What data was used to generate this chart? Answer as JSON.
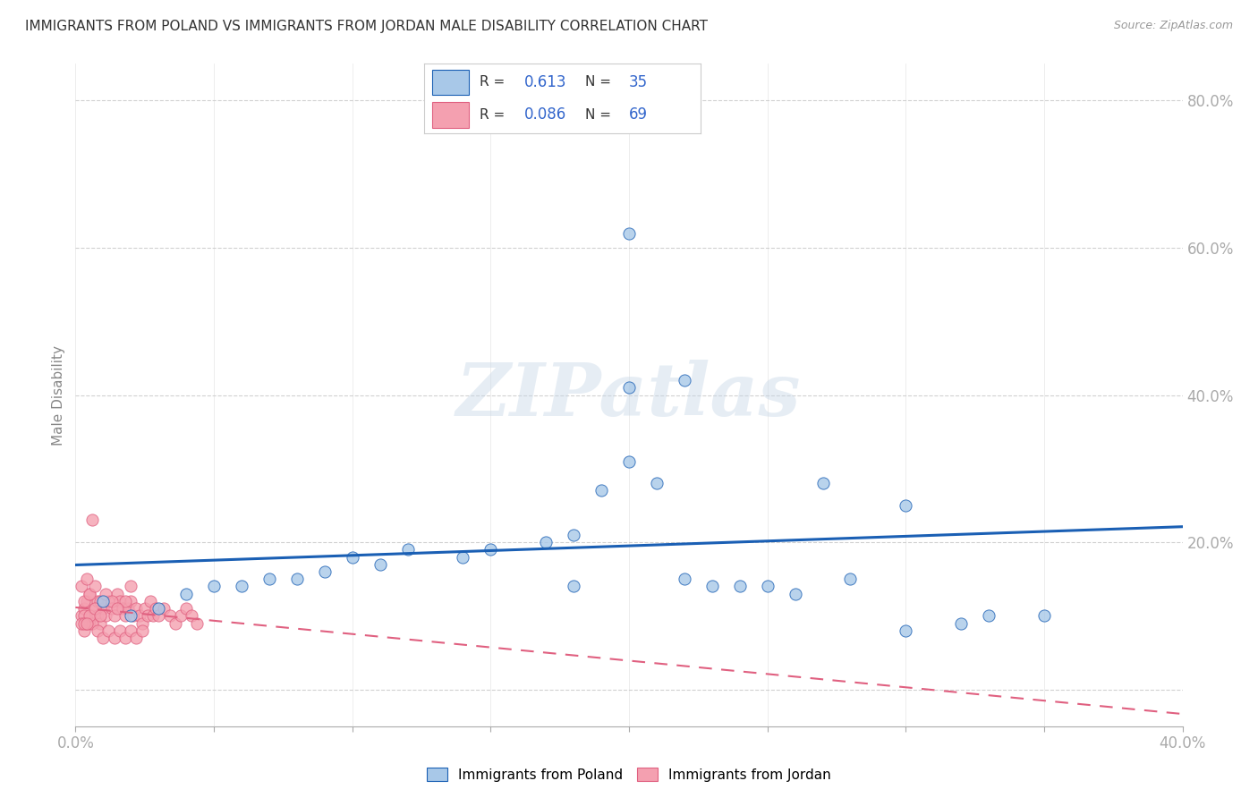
{
  "title": "IMMIGRANTS FROM POLAND VS IMMIGRANTS FROM JORDAN MALE DISABILITY CORRELATION CHART",
  "source": "Source: ZipAtlas.com",
  "ylabel": "Male Disability",
  "x_min": 0.0,
  "x_max": 0.4,
  "y_min": -0.05,
  "y_max": 0.85,
  "x_ticks": [
    0.0,
    0.05,
    0.1,
    0.15,
    0.2,
    0.25,
    0.3,
    0.35,
    0.4
  ],
  "x_tick_labels_show": [
    true,
    false,
    false,
    false,
    false,
    false,
    false,
    false,
    true
  ],
  "y_ticks": [
    0.0,
    0.2,
    0.4,
    0.6,
    0.8
  ],
  "poland_color": "#a8c8e8",
  "jordan_color": "#f4a0b0",
  "poland_line_color": "#1a5fb4",
  "jordan_line_color": "#e06080",
  "poland_R": 0.613,
  "poland_N": 35,
  "jordan_R": 0.086,
  "jordan_N": 69,
  "watermark": "ZIPatlas",
  "poland_scatter_x": [
    0.01,
    0.02,
    0.03,
    0.04,
    0.05,
    0.06,
    0.07,
    0.08,
    0.09,
    0.1,
    0.11,
    0.12,
    0.14,
    0.15,
    0.17,
    0.18,
    0.19,
    0.2,
    0.21,
    0.22,
    0.23,
    0.24,
    0.25,
    0.26,
    0.27,
    0.28,
    0.3,
    0.18,
    0.2,
    0.2,
    0.22,
    0.33,
    0.35,
    0.32,
    0.3
  ],
  "poland_scatter_y": [
    0.12,
    0.1,
    0.11,
    0.13,
    0.14,
    0.14,
    0.15,
    0.15,
    0.16,
    0.18,
    0.17,
    0.19,
    0.18,
    0.19,
    0.2,
    0.21,
    0.27,
    0.41,
    0.28,
    0.15,
    0.14,
    0.14,
    0.14,
    0.13,
    0.28,
    0.15,
    0.25,
    0.14,
    0.62,
    0.31,
    0.42,
    0.1,
    0.1,
    0.09,
    0.08
  ],
  "jordan_scatter_x": [
    0.002,
    0.003,
    0.004,
    0.005,
    0.005,
    0.006,
    0.007,
    0.008,
    0.008,
    0.009,
    0.01,
    0.011,
    0.012,
    0.013,
    0.014,
    0.015,
    0.016,
    0.017,
    0.018,
    0.019,
    0.02,
    0.021,
    0.022,
    0.023,
    0.024,
    0.025,
    0.026,
    0.027,
    0.028,
    0.029,
    0.03,
    0.032,
    0.034,
    0.036,
    0.038,
    0.04,
    0.042,
    0.044,
    0.003,
    0.004,
    0.006,
    0.008,
    0.01,
    0.012,
    0.014,
    0.016,
    0.018,
    0.02,
    0.022,
    0.024,
    0.003,
    0.005,
    0.007,
    0.009,
    0.011,
    0.013,
    0.003,
    0.005,
    0.007,
    0.009,
    0.002,
    0.004,
    0.006,
    0.002,
    0.003,
    0.004,
    0.02,
    0.018,
    0.015
  ],
  "jordan_scatter_y": [
    0.1,
    0.11,
    0.12,
    0.09,
    0.13,
    0.1,
    0.11,
    0.12,
    0.1,
    0.09,
    0.11,
    0.1,
    0.12,
    0.11,
    0.1,
    0.13,
    0.12,
    0.11,
    0.1,
    0.11,
    0.12,
    0.1,
    0.11,
    0.1,
    0.09,
    0.11,
    0.1,
    0.12,
    0.1,
    0.11,
    0.1,
    0.11,
    0.1,
    0.09,
    0.1,
    0.11,
    0.1,
    0.09,
    0.08,
    0.09,
    0.09,
    0.08,
    0.07,
    0.08,
    0.07,
    0.08,
    0.07,
    0.08,
    0.07,
    0.08,
    0.12,
    0.13,
    0.14,
    0.12,
    0.13,
    0.12,
    0.1,
    0.1,
    0.11,
    0.1,
    0.14,
    0.15,
    0.23,
    0.09,
    0.09,
    0.09,
    0.14,
    0.12,
    0.11
  ],
  "legend_label_poland": "Immigrants from Poland",
  "legend_label_jordan": "Immigrants from Jordan"
}
